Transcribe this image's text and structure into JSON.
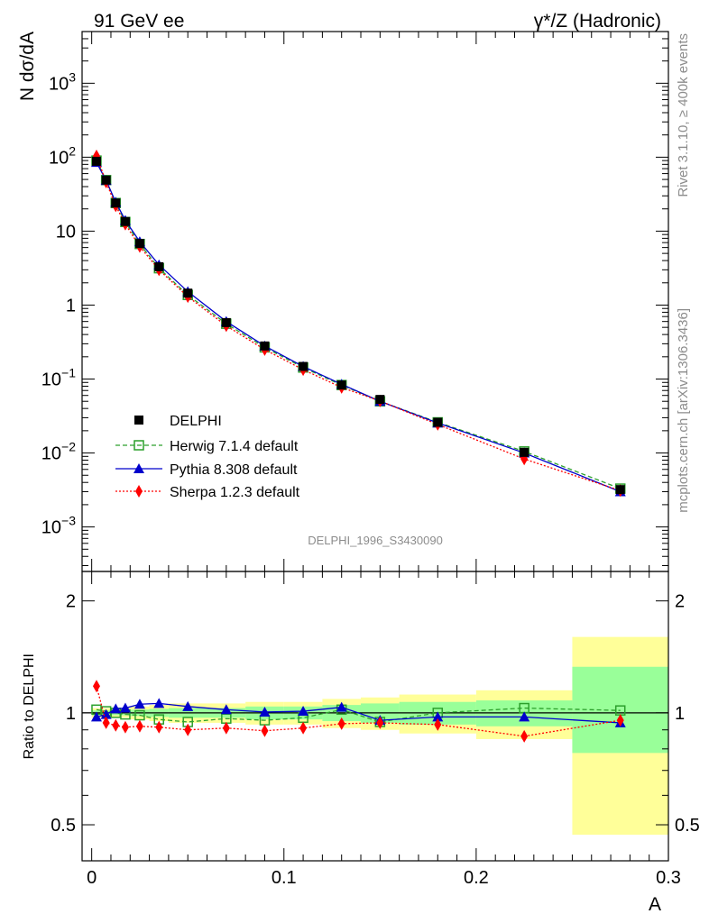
{
  "header": {
    "left": "91 GeV ee",
    "right": "γ*/Z (Hadronic)"
  },
  "side_texts": {
    "rivet": "Rivet 3.1.10, ≥ 400k events",
    "mcplots": "mcplots.cern.ch [arXiv:1306.3436]"
  },
  "analysis_id": "DELPHI_1996_S3430090",
  "colors": {
    "data": "#000000",
    "herwig": "#2ca02c",
    "pythia": "#0000cc",
    "sherpa": "#ff0000",
    "band_outer": "#ffff99",
    "band_inner": "#99ff99"
  },
  "chart_data": [
    {
      "type": "scatter",
      "panel": "main",
      "ylabel": "N dσ/dA",
      "xlim": [
        -0.005,
        0.3
      ],
      "ylim": [
        0.00025,
        5000
      ],
      "yscale": "log",
      "yticks": [
        {
          "v": 0.001,
          "label": "10",
          "exp": "−3"
        },
        {
          "v": 0.01,
          "label": "10",
          "exp": "−2"
        },
        {
          "v": 0.1,
          "label": "10",
          "exp": "−1"
        },
        {
          "v": 1,
          "label": "1",
          "exp": ""
        },
        {
          "v": 10,
          "label": "10",
          "exp": ""
        },
        {
          "v": 100,
          "label": "10",
          "exp": "2"
        },
        {
          "v": 1000,
          "label": "10",
          "exp": "3"
        }
      ],
      "legend_position": "bottom-left",
      "x": [
        0.0025,
        0.0075,
        0.0125,
        0.0175,
        0.025,
        0.035,
        0.05,
        0.07,
        0.09,
        0.11,
        0.13,
        0.15,
        0.18,
        0.225,
        0.275
      ],
      "series": [
        {
          "name": "DELPHI",
          "key": "data",
          "marker": "square-filled",
          "values": [
            88,
            49,
            24,
            13.5,
            6.8,
            3.3,
            1.45,
            0.58,
            0.28,
            0.148,
            0.083,
            0.053,
            0.026,
            0.0102,
            0.0032
          ]
        },
        {
          "name": "Herwig 7.1.4 default",
          "key": "herwig",
          "marker": "square-open",
          "line": "dashed",
          "values": [
            90,
            49,
            24,
            13.3,
            6.7,
            3.15,
            1.37,
            0.56,
            0.268,
            0.143,
            0.083,
            0.05,
            0.026,
            0.0105,
            0.0033
          ]
        },
        {
          "name": "Pythia 8.308 default",
          "key": "pythia",
          "marker": "triangle",
          "line": "solid",
          "values": [
            85,
            48.5,
            24.7,
            14,
            7.2,
            3.5,
            1.52,
            0.6,
            0.28,
            0.148,
            0.085,
            0.05,
            0.0255,
            0.01,
            0.003
          ]
        },
        {
          "name": "Sherpa 1.2.3 default",
          "key": "sherpa",
          "marker": "diamond",
          "line": "dotted",
          "values": [
            104,
            46,
            22,
            12.4,
            6.2,
            3.0,
            1.3,
            0.525,
            0.25,
            0.134,
            0.077,
            0.0505,
            0.0243,
            0.0083,
            0.0031
          ]
        }
      ]
    },
    {
      "type": "scatter",
      "panel": "ratio",
      "ylabel": "Ratio to DELPHI",
      "xlabel": "A",
      "xlim": [
        -0.005,
        0.3
      ],
      "ylim": [
        0.4,
        2.4
      ],
      "yscale": "log",
      "yticks": [
        {
          "v": 0.5,
          "label": "0.5"
        },
        {
          "v": 1,
          "label": "1"
        },
        {
          "v": 2,
          "label": "2"
        }
      ],
      "xticks": [
        {
          "v": 0,
          "label": "0"
        },
        {
          "v": 0.1,
          "label": "0.1"
        },
        {
          "v": 0.2,
          "label": "0.2"
        },
        {
          "v": 0.3,
          "label": "0.3"
        }
      ],
      "bins": [
        0,
        0.005,
        0.01,
        0.015,
        0.02,
        0.03,
        0.04,
        0.06,
        0.08,
        0.1,
        0.12,
        0.14,
        0.16,
        0.2,
        0.25,
        0.3
      ],
      "band_outer": [
        [
          0.97,
          1.03
        ],
        [
          0.97,
          1.03
        ],
        [
          0.97,
          1.03
        ],
        [
          0.97,
          1.03
        ],
        [
          0.96,
          1.04
        ],
        [
          0.95,
          1.05
        ],
        [
          0.94,
          1.06
        ],
        [
          0.94,
          1.06
        ],
        [
          0.93,
          1.07
        ],
        [
          0.93,
          1.07
        ],
        [
          0.91,
          1.09
        ],
        [
          0.9,
          1.1
        ],
        [
          0.88,
          1.12
        ],
        [
          0.85,
          1.15
        ],
        [
          0.47,
          1.6
        ]
      ],
      "band_inner": [
        [
          0.985,
          1.015
        ],
        [
          0.985,
          1.015
        ],
        [
          0.985,
          1.015
        ],
        [
          0.985,
          1.015
        ],
        [
          0.98,
          1.02
        ],
        [
          0.975,
          1.025
        ],
        [
          0.97,
          1.03
        ],
        [
          0.97,
          1.03
        ],
        [
          0.96,
          1.04
        ],
        [
          0.96,
          1.04
        ],
        [
          0.95,
          1.05
        ],
        [
          0.94,
          1.06
        ],
        [
          0.93,
          1.07
        ],
        [
          0.92,
          1.08
        ],
        [
          0.78,
          1.33
        ]
      ],
      "x": [
        0.0025,
        0.0075,
        0.0125,
        0.0175,
        0.025,
        0.035,
        0.05,
        0.07,
        0.09,
        0.11,
        0.13,
        0.15,
        0.18,
        0.225,
        0.275
      ],
      "series": [
        {
          "name": "Herwig 7.1.4 default",
          "key": "herwig",
          "marker": "square-open",
          "line": "dashed",
          "values": [
            1.02,
            1.01,
            1.0,
            0.99,
            0.985,
            0.96,
            0.945,
            0.965,
            0.955,
            0.97,
            1.02,
            0.945,
            1.0,
            1.03,
            1.015
          ]
        },
        {
          "name": "Pythia 8.308 default",
          "key": "pythia",
          "marker": "triangle",
          "line": "solid",
          "values": [
            0.975,
            0.99,
            1.025,
            1.03,
            1.055,
            1.06,
            1.04,
            1.02,
            1.005,
            1.01,
            1.035,
            0.955,
            0.975,
            0.975,
            0.94
          ]
        },
        {
          "name": "Sherpa 1.2.3 default",
          "key": "sherpa",
          "marker": "diamond",
          "line": "dotted",
          "values": [
            1.18,
            0.94,
            0.925,
            0.915,
            0.92,
            0.915,
            0.9,
            0.91,
            0.895,
            0.91,
            0.935,
            0.94,
            0.93,
            0.865,
            0.955
          ]
        }
      ]
    }
  ]
}
